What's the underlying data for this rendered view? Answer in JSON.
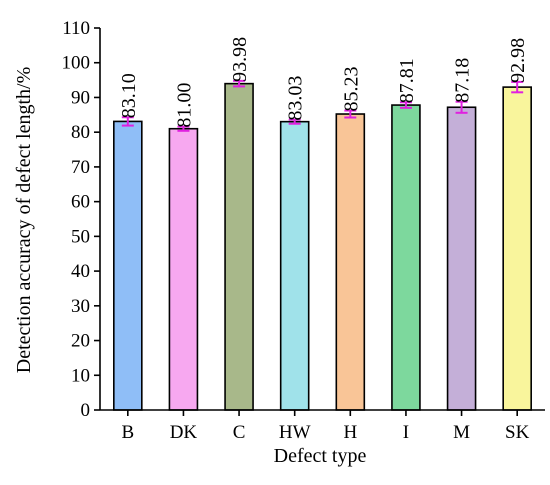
{
  "chart_data": {
    "type": "bar",
    "categories": [
      "B",
      "DK",
      "C",
      "HW",
      "H",
      "I",
      "M",
      "SK"
    ],
    "values": [
      83.1,
      81.0,
      93.98,
      83.03,
      85.23,
      87.81,
      87.18,
      92.98
    ],
    "value_labels": [
      "83.10",
      "81.00",
      "93.98",
      "83.03",
      "85.23",
      "87.81",
      "87.18",
      "92.98"
    ],
    "errors": [
      1.2,
      0.6,
      0.8,
      0.6,
      1.0,
      0.8,
      1.6,
      1.5
    ],
    "bar_colors": [
      "#8fbef7",
      "#f7a8f0",
      "#a8b88a",
      "#a0e2ea",
      "#f9c597",
      "#7dd89d",
      "#c4afd8",
      "#f9f59c"
    ],
    "error_bar_color": "#e020e0",
    "xlabel": "Defect type",
    "ylabel": "Detection accuracy of defect length/%",
    "ylim": [
      0,
      110
    ],
    "yticks": [
      0,
      10,
      20,
      30,
      40,
      50,
      60,
      70,
      80,
      90,
      100,
      110
    ],
    "grid": false
  }
}
